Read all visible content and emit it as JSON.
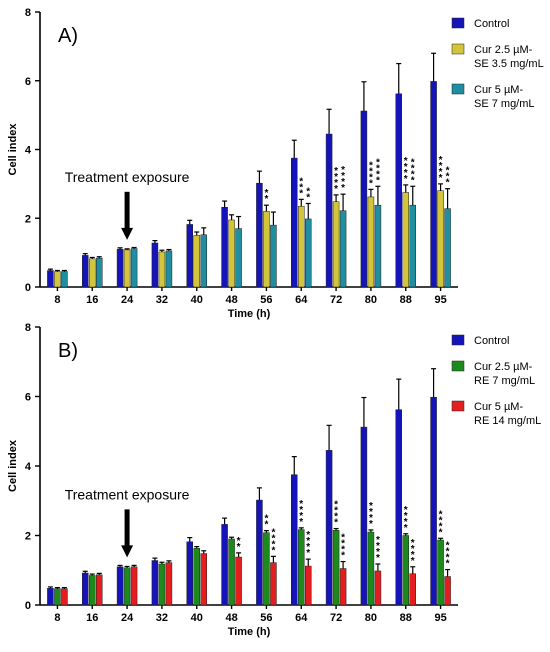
{
  "chart_data": [
    {
      "type": "bar",
      "panel_label": "A)",
      "xlabel": "Time (h)",
      "ylabel": "Cell index",
      "ylim": [
        0,
        8
      ],
      "yticks": [
        0,
        2,
        4,
        6,
        8
      ],
      "categories": [
        "8",
        "16",
        "24",
        "32",
        "40",
        "48",
        "56",
        "64",
        "72",
        "80",
        "88",
        "95"
      ],
      "annotation": "Treatment exposure",
      "annotation_category": "24",
      "legend_position": "top-right",
      "series": [
        {
          "name": "Control",
          "color": "#1414b8",
          "values": [
            0.48,
            0.92,
            1.1,
            1.28,
            1.82,
            2.32,
            3.02,
            3.75,
            4.45,
            5.12,
            5.62,
            5.98
          ],
          "errors": [
            0.04,
            0.05,
            0.04,
            0.07,
            0.12,
            0.18,
            0.35,
            0.52,
            0.72,
            0.85,
            0.88,
            0.82
          ],
          "significance": [
            "",
            "",
            "",
            "",
            "",
            "",
            "",
            "",
            "",
            "",
            "",
            ""
          ]
        },
        {
          "name": "Cur 2.5 µM-SE 3.5 mg/mL",
          "legend_lines": [
            "Cur 2.5 µM-",
            "SE 3.5 mg/mL"
          ],
          "color": "#d2c53b",
          "values": [
            0.45,
            0.82,
            1.08,
            1.02,
            1.5,
            1.95,
            2.2,
            2.35,
            2.48,
            2.62,
            2.75,
            2.8
          ],
          "errors": [
            0.03,
            0.04,
            0.03,
            0.05,
            0.1,
            0.15,
            0.18,
            0.2,
            0.2,
            0.22,
            0.22,
            0.2
          ],
          "significance": [
            "",
            "",
            "",
            "",
            "",
            "",
            "**",
            "***",
            "****",
            "****",
            "****",
            "****"
          ]
        },
        {
          "name": "Cur 5 µM-SE 7 mg/mL",
          "legend_lines": [
            "Cur 5 µM-",
            "SE 7 mg/mL"
          ],
          "color": "#1f8ea0",
          "values": [
            0.45,
            0.84,
            1.12,
            1.05,
            1.52,
            1.7,
            1.8,
            1.98,
            2.22,
            2.38,
            2.38,
            2.28
          ],
          "errors": [
            0.03,
            0.04,
            0.03,
            0.04,
            0.2,
            0.35,
            0.38,
            0.45,
            0.48,
            0.55,
            0.55,
            0.58
          ],
          "significance": [
            "",
            "",
            "",
            "",
            "",
            "",
            "",
            "**",
            "****",
            "****",
            "****",
            "***"
          ]
        }
      ]
    },
    {
      "type": "bar",
      "panel_label": "B)",
      "xlabel": "Time (h)",
      "ylabel": "Cell index",
      "ylim": [
        0,
        8
      ],
      "yticks": [
        0,
        2,
        4,
        6,
        8
      ],
      "categories": [
        "8",
        "16",
        "24",
        "32",
        "40",
        "48",
        "56",
        "64",
        "72",
        "80",
        "88",
        "95"
      ],
      "annotation": "Treatment exposure",
      "annotation_category": "24",
      "legend_position": "top-right",
      "series": [
        {
          "name": "Control",
          "color": "#1414b8",
          "values": [
            0.48,
            0.92,
            1.1,
            1.28,
            1.82,
            2.32,
            3.02,
            3.75,
            4.45,
            5.12,
            5.62,
            5.98
          ],
          "errors": [
            0.04,
            0.05,
            0.04,
            0.07,
            0.12,
            0.18,
            0.35,
            0.52,
            0.72,
            0.85,
            0.88,
            0.82
          ],
          "significance": [
            "",
            "",
            "",
            "",
            "",
            "",
            "",
            "",
            "",
            "",
            "",
            ""
          ]
        },
        {
          "name": "Cur 2.5 µM-RE 7 mg/mL",
          "legend_lines": [
            "Cur 2.5 µM-",
            "RE 7 mg/mL"
          ],
          "color": "#1e8a1e",
          "values": [
            0.47,
            0.85,
            1.07,
            1.18,
            1.63,
            1.9,
            2.08,
            2.17,
            2.15,
            2.1,
            2.0,
            1.87
          ],
          "errors": [
            0.03,
            0.04,
            0.04,
            0.05,
            0.05,
            0.05,
            0.06,
            0.05,
            0.05,
            0.06,
            0.05,
            0.05
          ],
          "significance": [
            "",
            "",
            "",
            "",
            "",
            "",
            "**",
            "****",
            "****",
            "****",
            "****",
            "****"
          ]
        },
        {
          "name": "Cur 5 µM-RE 14 mg/mL",
          "legend_lines": [
            "Cur 5 µM-",
            "RE 14 mg/mL"
          ],
          "color": "#e41e1e",
          "values": [
            0.47,
            0.87,
            1.1,
            1.22,
            1.48,
            1.38,
            1.22,
            1.12,
            1.05,
            0.98,
            0.9,
            0.82
          ],
          "errors": [
            0.03,
            0.04,
            0.04,
            0.05,
            0.08,
            0.12,
            0.18,
            0.2,
            0.2,
            0.2,
            0.2,
            0.2
          ],
          "significance": [
            "",
            "",
            "",
            "",
            "",
            "**",
            "****",
            "****",
            "****",
            "****",
            "****",
            "****"
          ]
        }
      ]
    }
  ]
}
